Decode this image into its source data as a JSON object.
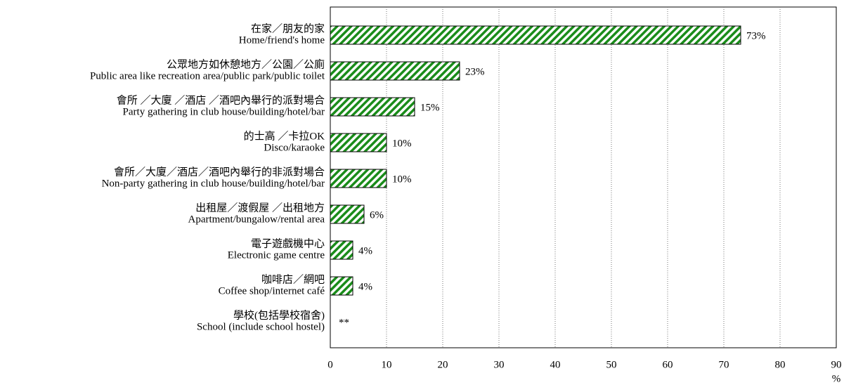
{
  "chart_data": {
    "type": "barh",
    "categories": [
      [
        "在家／朋友的家",
        "Home/friend's home"
      ],
      [
        "公眾地方如休憩地方／公園／公廁",
        "Public area like recreation area/public park/public toilet"
      ],
      [
        "會所 ／大廈 ／酒店 ／酒吧內舉行的派對場合",
        "Party gathering in club house/building/hotel/bar"
      ],
      [
        "的士高 ／卡拉OK",
        "Disco/karaoke"
      ],
      [
        "會所／大廈／酒店／酒吧內舉行的非派對場合",
        "Non-party gathering in club house/building/hotel/bar"
      ],
      [
        "出租屋／渡假屋 ／出租地方",
        "Apartment/bungalow/rental area"
      ],
      [
        "電子遊戲機中心",
        "Electronic game centre"
      ],
      [
        "咖啡店／網吧",
        "Coffee shop/internet café"
      ],
      [
        "學校(包括學校宿舍)",
        "School (include school hostel)"
      ]
    ],
    "values": [
      73,
      23,
      15,
      10,
      10,
      6,
      4,
      4,
      null
    ],
    "value_labels": [
      "73%",
      "23%",
      "15%",
      "10%",
      "10%",
      "6%",
      "4%",
      "4%",
      "**"
    ],
    "color": "#1a8c1a",
    "xlabel": "%",
    "xlim": [
      0,
      90
    ],
    "xticks": [
      0,
      10,
      20,
      30,
      40,
      50,
      60,
      70,
      80,
      90
    ],
    "grid": true
  }
}
